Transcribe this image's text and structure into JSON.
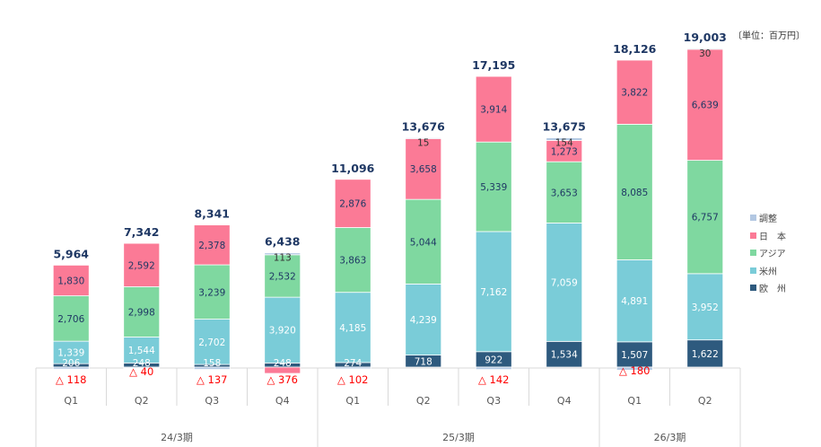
{
  "chart_data": {
    "type": "bar",
    "stacked": true,
    "title": "",
    "unit_label": "〔単位：百万円〕",
    "xlabel": "",
    "ylabel": "",
    "ylim": [
      -500,
      19500
    ],
    "grid": false,
    "legend_position": "right",
    "categories": [
      "Q1",
      "Q2",
      "Q3",
      "Q4",
      "Q1",
      "Q2",
      "Q3",
      "Q4",
      "Q1",
      "Q2"
    ],
    "period_groups": [
      {
        "label": "24/3期",
        "count": 4
      },
      {
        "label": "25/3期",
        "count": 4
      },
      {
        "label": "26/3期",
        "count": 2
      }
    ],
    "totals": [
      "5,964",
      "7,342",
      "8,341",
      "6,438",
      "11,096",
      "13,676",
      "17,195",
      "13,675",
      "18,126",
      "19,003"
    ],
    "series": [
      {
        "name": "欧　州",
        "key": "europe",
        "color": "#2e5a7e",
        "label_color": "#ffffff",
        "values": [
          206,
          248,
          158,
          248,
          274,
          718,
          922,
          1534,
          1507,
          1622
        ]
      },
      {
        "name": "米州",
        "key": "americas",
        "color": "#7accd8",
        "label_color": "#ffffff",
        "values": [
          1339,
          1544,
          2702,
          3920,
          4185,
          4239,
          7162,
          7059,
          4891,
          3952
        ]
      },
      {
        "name": "アジア",
        "key": "asia",
        "color": "#7fd8a0",
        "label_color": "#1f3864",
        "values": [
          2706,
          2998,
          3239,
          2532,
          3863,
          5044,
          5339,
          3653,
          8085,
          6757
        ]
      },
      {
        "name": "日　本",
        "key": "japan",
        "color": "#fb7a96",
        "label_color": "#1f3864",
        "values": [
          1830,
          2592,
          2378,
          -376,
          2876,
          3658,
          3914,
          1273,
          3822,
          6639
        ]
      },
      {
        "name": "調整",
        "key": "adjustment",
        "color": "#b3c8e2",
        "label_color": "#333333",
        "values": [
          -118,
          -40,
          -137,
          113,
          -102,
          15,
          -142,
          154,
          -180,
          30
        ]
      }
    ],
    "negative_labels": [
      "△ 118",
      "△ 40",
      "△ 137",
      "△ 376",
      "△ 102",
      "",
      "△ 142",
      "",
      "△ 180",
      ""
    ],
    "legend_order": [
      "adjustment",
      "japan",
      "asia",
      "americas",
      "europe"
    ],
    "colors": {
      "total_label": "#1f3864",
      "negative_label": "#ff0000",
      "axis_text": "#555555",
      "grid_line": "#d9d9d9"
    }
  }
}
